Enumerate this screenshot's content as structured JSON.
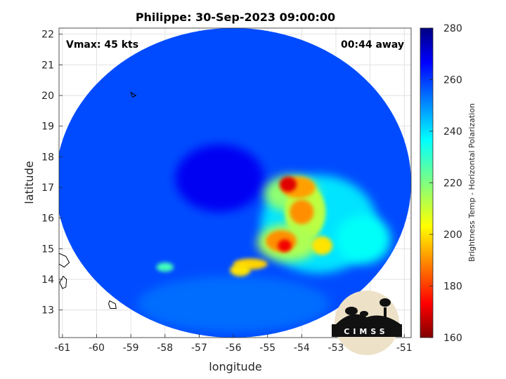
{
  "chart_data": {
    "type": "heatmap",
    "title": "Philippe: 30-Sep-2023 09:00:00",
    "xlabel": "longitude",
    "ylabel": "latitude",
    "xlim": [
      -61.1,
      -50.8
    ],
    "ylim": [
      12.1,
      22.2
    ],
    "xticks": [
      -61,
      -60,
      -59,
      -58,
      -57,
      -56,
      -55,
      -54,
      -53,
      -52,
      -51
    ],
    "yticks": [
      13,
      14,
      15,
      16,
      17,
      18,
      19,
      20,
      21,
      22
    ],
    "grid": true,
    "annotations": {
      "vmax": "Vmax: 45 kts",
      "away": "00:44 away"
    },
    "colorbar": {
      "label": "Brightness Temp - Horizontal Polarization",
      "limits": [
        160,
        280
      ],
      "ticks": [
        160,
        180,
        200,
        220,
        240,
        260,
        280
      ],
      "colormap": "jet"
    },
    "swath": {
      "center": [
        -56.0,
        17.15
      ],
      "radius_lon": 5.2,
      "radius_lat": 5.05,
      "background_value": 258
    },
    "features": [
      {
        "lon": -56.4,
        "lat": 17.3,
        "rx": 1.3,
        "ry": 1.1,
        "value": 268
      },
      {
        "lon": -56.0,
        "lat": 13.2,
        "rx": 2.8,
        "ry": 0.9,
        "value": 254
      },
      {
        "lon": -53.5,
        "lat": 15.8,
        "rx": 1.7,
        "ry": 1.6,
        "value": 240
      },
      {
        "lon": -52.2,
        "lat": 15.3,
        "rx": 0.8,
        "ry": 0.8,
        "value": 236
      },
      {
        "lon": -54.3,
        "lat": 16.8,
        "rx": 0.8,
        "ry": 0.6,
        "value": 218
      },
      {
        "lon": -53.9,
        "lat": 16.2,
        "rx": 0.6,
        "ry": 0.9,
        "value": 212
      },
      {
        "lon": -54.4,
        "lat": 15.2,
        "rx": 0.9,
        "ry": 0.6,
        "value": 214
      },
      {
        "lon": -53.4,
        "lat": 15.1,
        "rx": 0.3,
        "ry": 0.3,
        "value": 200
      },
      {
        "lon": -54.1,
        "lat": 17.0,
        "rx": 0.5,
        "ry": 0.35,
        "value": 192
      },
      {
        "lon": -54.4,
        "lat": 17.1,
        "rx": 0.25,
        "ry": 0.25,
        "value": 170
      },
      {
        "lon": -54.0,
        "lat": 16.2,
        "rx": 0.35,
        "ry": 0.4,
        "value": 190
      },
      {
        "lon": -54.6,
        "lat": 15.25,
        "rx": 0.45,
        "ry": 0.35,
        "value": 190
      },
      {
        "lon": -54.5,
        "lat": 15.1,
        "rx": 0.2,
        "ry": 0.2,
        "value": 172
      },
      {
        "lon": -55.5,
        "lat": 14.5,
        "rx": 0.5,
        "ry": 0.18,
        "value": 198
      },
      {
        "lon": -55.8,
        "lat": 14.3,
        "rx": 0.3,
        "ry": 0.2,
        "value": 200
      },
      {
        "lon": -58.0,
        "lat": 14.4,
        "rx": 0.25,
        "ry": 0.15,
        "value": 228
      }
    ],
    "coastlines": [
      [
        [
          -61.1,
          14.85
        ],
        [
          -60.9,
          14.75
        ],
        [
          -60.8,
          14.55
        ],
        [
          -60.95,
          14.4
        ],
        [
          -61.1,
          14.5
        ]
      ],
      [
        [
          -60.98,
          14.1
        ],
        [
          -60.88,
          14.0
        ],
        [
          -60.9,
          13.75
        ],
        [
          -61.0,
          13.7
        ],
        [
          -61.08,
          13.9
        ]
      ],
      [
        [
          -59.62,
          13.3
        ],
        [
          -59.45,
          13.2
        ],
        [
          -59.43,
          13.05
        ],
        [
          -59.6,
          13.05
        ],
        [
          -59.65,
          13.2
        ]
      ],
      [
        [
          -59.0,
          20.1
        ],
        [
          -58.85,
          20.0
        ],
        [
          -58.95,
          19.95
        ]
      ]
    ],
    "logo_text": "CIMSS"
  }
}
